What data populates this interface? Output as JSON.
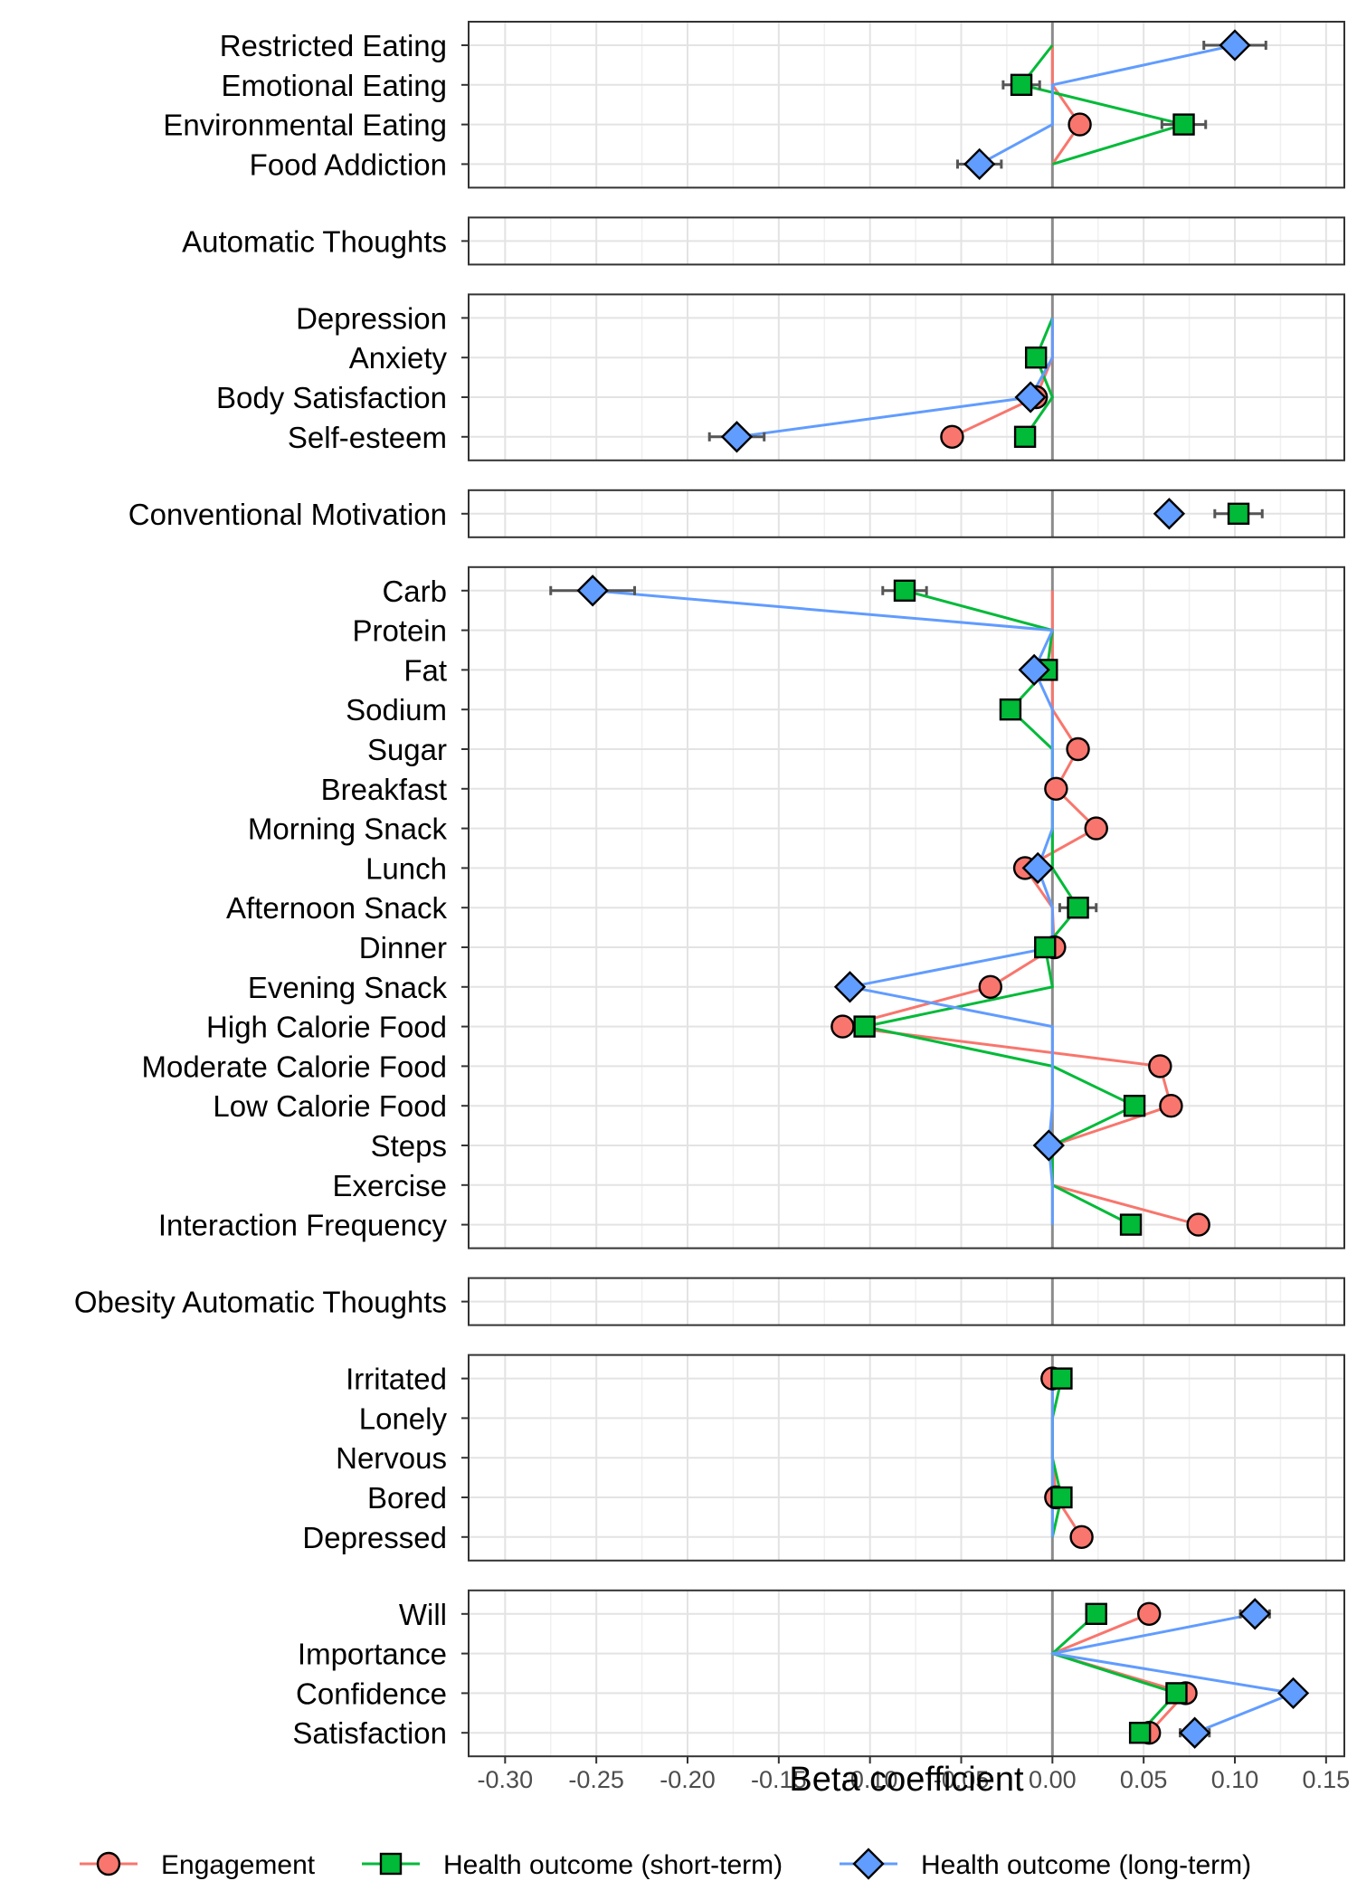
{
  "chart_data": {
    "type": "scatter",
    "xlabel": "Beta coefficient",
    "xlim": [
      -0.32,
      0.16
    ],
    "x_ticks": [
      -0.3,
      -0.25,
      -0.2,
      -0.15,
      -0.1,
      -0.05,
      0.0,
      0.05,
      0.1,
      0.15
    ],
    "x_tick_labels": [
      "-0.30",
      "-0.25",
      "-0.20",
      "-0.15",
      "-0.10",
      "-0.05",
      "0.00",
      "0.05",
      "0.10",
      "0.15"
    ],
    "grid": true,
    "reference_line_x": 0,
    "legend_position": "bottom",
    "series": [
      {
        "name": "Engagement",
        "color": "#F8766D",
        "shape": "circle"
      },
      {
        "name": "Health outcome (short-term)",
        "color": "#00BA38",
        "shape": "square"
      },
      {
        "name": "Health outcome (long-term)",
        "color": "#619CFF",
        "shape": "diamond"
      }
    ],
    "panels": [
      {
        "categories": [
          "Restricted Eating",
          "Emotional Eating",
          "Environmental Eating",
          "Food Addiction"
        ],
        "series": [
          {
            "name": "Engagement",
            "values": [
              0,
              0,
              0.015,
              0
            ],
            "show": [
              false,
              false,
              true,
              false
            ],
            "err": [
              0,
              0,
              0,
              0
            ]
          },
          {
            "name": "Health outcome (short-term)",
            "values": [
              0,
              -0.017,
              0.072,
              0
            ],
            "show": [
              false,
              true,
              true,
              false
            ],
            "err": [
              0,
              0.01,
              0.012,
              0
            ]
          },
          {
            "name": "Health outcome (long-term)",
            "values": [
              0.1,
              0,
              0,
              -0.04
            ],
            "show": [
              true,
              false,
              false,
              true
            ],
            "err": [
              0.017,
              0,
              0,
              0.012
            ]
          }
        ]
      },
      {
        "categories": [
          "Automatic Thoughts"
        ],
        "series": [
          {
            "name": "Engagement",
            "values": [
              0
            ],
            "show": [
              false
            ],
            "err": [
              0
            ]
          },
          {
            "name": "Health outcome (short-term)",
            "values": [
              0
            ],
            "show": [
              false
            ],
            "err": [
              0
            ]
          },
          {
            "name": "Health outcome (long-term)",
            "values": [
              0
            ],
            "show": [
              false
            ],
            "err": [
              0
            ]
          }
        ]
      },
      {
        "categories": [
          "Depression",
          "Anxiety",
          "Body Satisfaction",
          "Self-esteem"
        ],
        "series": [
          {
            "name": "Engagement",
            "values": [
              0,
              0,
              -0.009,
              -0.055
            ],
            "show": [
              false,
              false,
              true,
              true
            ],
            "err": [
              0,
              0,
              0,
              0
            ]
          },
          {
            "name": "Health outcome (short-term)",
            "values": [
              0,
              -0.009,
              0,
              -0.015
            ],
            "show": [
              false,
              true,
              false,
              true
            ],
            "err": [
              0,
              0,
              0,
              0.005
            ]
          },
          {
            "name": "Health outcome (long-term)",
            "values": [
              0,
              0,
              -0.012,
              -0.173
            ],
            "show": [
              false,
              false,
              true,
              true
            ],
            "err": [
              0,
              0,
              0,
              0.015
            ]
          }
        ]
      },
      {
        "categories": [
          "Conventional Motivation"
        ],
        "series": [
          {
            "name": "Engagement",
            "values": [
              0
            ],
            "show": [
              false
            ],
            "err": [
              0
            ]
          },
          {
            "name": "Health outcome (short-term)",
            "values": [
              0.102
            ],
            "show": [
              true
            ],
            "err": [
              0.013
            ]
          },
          {
            "name": "Health outcome (long-term)",
            "values": [
              0.064
            ],
            "show": [
              true
            ],
            "err": [
              0
            ]
          }
        ]
      },
      {
        "categories": [
          "Carb",
          "Protein",
          "Fat",
          "Sodium",
          "Sugar",
          "Breakfast",
          "Morning Snack",
          "Lunch",
          "Afternoon Snack",
          "Dinner",
          "Evening Snack",
          "High Calorie Food",
          "Moderate Calorie Food",
          "Low Calorie Food",
          "Steps",
          "Exercise",
          "Interaction Frequency"
        ],
        "series": [
          {
            "name": "Engagement",
            "values": [
              0,
              0,
              0,
              0,
              0.014,
              0.002,
              0.024,
              -0.015,
              0,
              0.001,
              -0.034,
              -0.115,
              0.059,
              0.065,
              0,
              0,
              0.08
            ],
            "show": [
              false,
              false,
              false,
              false,
              true,
              true,
              true,
              true,
              false,
              true,
              true,
              true,
              true,
              true,
              false,
              false,
              true
            ],
            "err": [
              0,
              0,
              0,
              0,
              0,
              0,
              0,
              0,
              0,
              0,
              0,
              0,
              0,
              0,
              0,
              0,
              0
            ]
          },
          {
            "name": "Health outcome (short-term)",
            "values": [
              -0.081,
              0,
              -0.003,
              -0.023,
              0,
              0,
              0,
              0,
              0.014,
              -0.004,
              0,
              -0.103,
              0,
              0.045,
              0,
              0,
              0.043
            ],
            "show": [
              true,
              false,
              true,
              true,
              false,
              false,
              false,
              false,
              true,
              true,
              false,
              true,
              false,
              true,
              false,
              false,
              true
            ],
            "err": [
              0.012,
              0,
              0,
              0,
              0,
              0,
              0,
              0,
              0.01,
              0,
              0,
              0.005,
              0,
              0,
              0,
              0,
              0.005
            ]
          },
          {
            "name": "Health outcome (long-term)",
            "values": [
              -0.252,
              0,
              -0.01,
              0,
              0,
              0,
              0,
              -0.008,
              0,
              0,
              -0.111,
              0,
              0,
              0,
              -0.002,
              0,
              0
            ],
            "show": [
              true,
              false,
              true,
              false,
              false,
              false,
              false,
              true,
              false,
              false,
              true,
              false,
              false,
              false,
              true,
              false,
              false
            ],
            "err": [
              0.023,
              0,
              0,
              0,
              0,
              0,
              0,
              0,
              0,
              0,
              0,
              0,
              0,
              0,
              0,
              0,
              0
            ]
          }
        ]
      },
      {
        "categories": [
          "Obesity Automatic Thoughts"
        ],
        "series": [
          {
            "name": "Engagement",
            "values": [
              0
            ],
            "show": [
              false
            ],
            "err": [
              0
            ]
          },
          {
            "name": "Health outcome (short-term)",
            "values": [
              0
            ],
            "show": [
              false
            ],
            "err": [
              0
            ]
          },
          {
            "name": "Health outcome (long-term)",
            "values": [
              0
            ],
            "show": [
              false
            ],
            "err": [
              0
            ]
          }
        ]
      },
      {
        "categories": [
          "Irritated",
          "Lonely",
          "Nervous",
          "Bored",
          "Depressed"
        ],
        "series": [
          {
            "name": "Engagement",
            "values": [
              0,
              0,
              0,
              0.002,
              0.016
            ],
            "show": [
              true,
              false,
              false,
              true,
              true
            ],
            "err": [
              0,
              0,
              0,
              0,
              0
            ]
          },
          {
            "name": "Health outcome (short-term)",
            "values": [
              0.005,
              0,
              0,
              0.005,
              0
            ],
            "show": [
              true,
              false,
              false,
              true,
              false
            ],
            "err": [
              0,
              0,
              0,
              0,
              0
            ]
          },
          {
            "name": "Health outcome (long-term)",
            "values": [
              0,
              0,
              0,
              0,
              0
            ],
            "show": [
              false,
              false,
              false,
              false,
              false
            ],
            "err": [
              0,
              0,
              0,
              0,
              0
            ]
          }
        ]
      },
      {
        "categories": [
          "Will",
          "Importance",
          "Confidence",
          "Satisfaction"
        ],
        "series": [
          {
            "name": "Engagement",
            "values": [
              0.053,
              0,
              0.073,
              0.053
            ],
            "show": [
              true,
              false,
              true,
              true
            ],
            "err": [
              0,
              0,
              0,
              0
            ]
          },
          {
            "name": "Health outcome (short-term)",
            "values": [
              0.024,
              0,
              0.068,
              0.048
            ],
            "show": [
              true,
              false,
              true,
              true
            ],
            "err": [
              0,
              0,
              0,
              0
            ]
          },
          {
            "name": "Health outcome (long-term)",
            "values": [
              0.111,
              0,
              0.132,
              0.078
            ],
            "show": [
              true,
              false,
              true,
              true
            ],
            "err": [
              0.008,
              0,
              0,
              0.008
            ]
          }
        ]
      }
    ]
  }
}
